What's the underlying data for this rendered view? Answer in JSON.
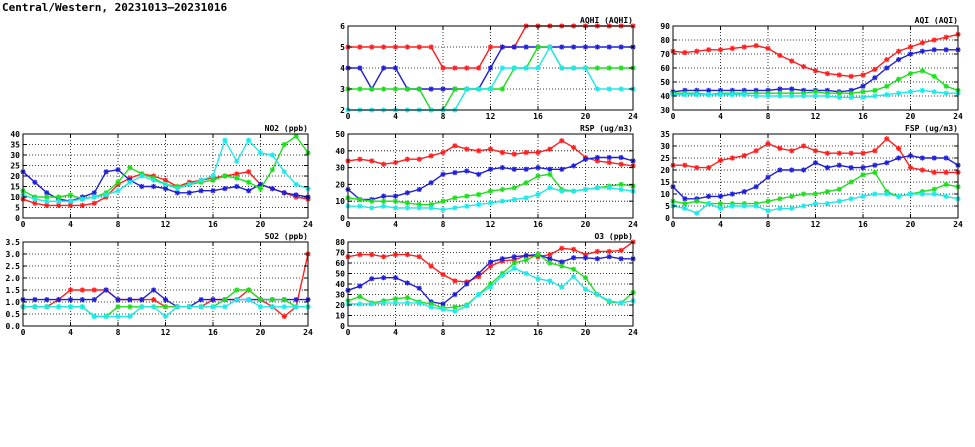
{
  "page_title": "Central/Western, 20231013–20231016",
  "series_colors": [
    "#ff1f1f",
    "#1f1fd9",
    "#1fdd1f",
    "#1fe8e8"
  ],
  "chart_data": [
    {
      "type": "line",
      "title": "AQHI (AQHI)",
      "x": [
        0,
        1,
        2,
        3,
        4,
        5,
        6,
        7,
        8,
        9,
        10,
        11,
        12,
        13,
        14,
        15,
        16,
        17,
        18,
        19,
        20,
        21,
        22,
        23,
        24
      ],
      "xlim": [
        0,
        24
      ],
      "ylim": [
        2,
        6
      ],
      "xticks": [
        0,
        4,
        8,
        12,
        16,
        20,
        24
      ],
      "yticks": [
        2,
        3,
        4,
        5,
        6
      ],
      "grid": true,
      "series": [
        {
          "color": "#ff1f1f",
          "values": [
            5,
            5,
            5,
            5,
            5,
            5,
            5,
            5,
            4,
            4,
            4,
            4,
            5,
            5,
            5,
            6,
            6,
            6,
            6,
            6,
            6,
            6,
            6,
            6,
            6
          ]
        },
        {
          "color": "#1f1fd9",
          "values": [
            4,
            4,
            3,
            4,
            4,
            3,
            3,
            3,
            3,
            3,
            3,
            3,
            4,
            5,
            5,
            5,
            5,
            5,
            5,
            5,
            5,
            5,
            5,
            5,
            5
          ]
        },
        {
          "color": "#1fdd1f",
          "values": [
            3,
            3,
            3,
            3,
            3,
            3,
            3,
            2,
            2,
            3,
            3,
            3,
            3,
            3,
            4,
            4,
            5,
            5,
            4,
            4,
            4,
            4,
            4,
            4,
            4
          ]
        },
        {
          "color": "#1fe8e8",
          "values": [
            2,
            2,
            2,
            2,
            2,
            2,
            2,
            2,
            2,
            2,
            3,
            3,
            3,
            4,
            4,
            4,
            4,
            5,
            4,
            4,
            4,
            3,
            3,
            3,
            3
          ]
        }
      ]
    },
    {
      "type": "line",
      "title": "AQI (AQI)",
      "x": [
        0,
        1,
        2,
        3,
        4,
        5,
        6,
        7,
        8,
        9,
        10,
        11,
        12,
        13,
        14,
        15,
        16,
        17,
        18,
        19,
        20,
        21,
        22,
        23,
        24
      ],
      "xlim": [
        0,
        24
      ],
      "ylim": [
        30,
        90
      ],
      "xticks": [
        0,
        4,
        8,
        12,
        16,
        20,
        24
      ],
      "yticks": [
        30,
        40,
        50,
        60,
        70,
        80,
        90
      ],
      "grid": true,
      "series": [
        {
          "color": "#ff1f1f",
          "values": [
            72,
            71,
            72,
            73,
            73,
            74,
            75,
            76,
            74,
            69,
            65,
            61,
            58,
            56,
            55,
            54,
            55,
            59,
            66,
            72,
            75,
            78,
            80,
            82,
            84
          ]
        },
        {
          "color": "#1f1fd9",
          "values": [
            43,
            44,
            44,
            44,
            44,
            44,
            44,
            44,
            44,
            45,
            45,
            44,
            44,
            44,
            43,
            44,
            47,
            53,
            60,
            66,
            70,
            72,
            73,
            73,
            73
          ]
        },
        {
          "color": "#1fdd1f",
          "values": [
            42,
            42,
            42,
            41,
            42,
            42,
            42,
            42,
            42,
            42,
            42,
            42,
            43,
            42,
            42,
            42,
            43,
            44,
            47,
            52,
            56,
            58,
            54,
            47,
            44
          ]
        },
        {
          "color": "#1fe8e8",
          "values": [
            41,
            41,
            41,
            41,
            41,
            41,
            41,
            40,
            40,
            40,
            40,
            40,
            40,
            40,
            39,
            39,
            39,
            40,
            41,
            42,
            43,
            44,
            43,
            42,
            42
          ]
        }
      ]
    },
    {
      "type": "line",
      "title": "NO2 (ppb)",
      "x": [
        0,
        1,
        2,
        3,
        4,
        5,
        6,
        7,
        8,
        9,
        10,
        11,
        12,
        13,
        14,
        15,
        16,
        17,
        18,
        19,
        20,
        21,
        22,
        23,
        24
      ],
      "xlim": [
        0,
        24
      ],
      "ylim": [
        0,
        40
      ],
      "xticks": [
        0,
        4,
        8,
        12,
        16,
        20,
        24
      ],
      "yticks": [
        0,
        5,
        10,
        15,
        20,
        25,
        30,
        35,
        40
      ],
      "grid": true,
      "series": [
        {
          "color": "#ff1f1f",
          "values": [
            9,
            7,
            6,
            6,
            6,
            6,
            7,
            10,
            16,
            19,
            21,
            20,
            18,
            15,
            17,
            18,
            19,
            20,
            21,
            22,
            16,
            14,
            12,
            10,
            9
          ]
        },
        {
          "color": "#1f1fd9",
          "values": [
            22,
            17,
            12,
            9,
            8,
            10,
            12,
            22,
            23,
            18,
            15,
            15,
            14,
            12,
            12,
            13,
            13,
            14,
            15,
            13,
            16,
            14,
            12,
            11,
            10
          ]
        },
        {
          "color": "#1fdd1f",
          "values": [
            13,
            10,
            10,
            10,
            11,
            9,
            10,
            12,
            17,
            24,
            21,
            19,
            16,
            15,
            16,
            17,
            18,
            20,
            19,
            17,
            14,
            23,
            35,
            39,
            31
          ]
        },
        {
          "color": "#1fe8e8",
          "values": [
            11,
            9,
            8,
            8,
            8,
            9,
            10,
            11,
            13,
            17,
            20,
            18,
            16,
            14,
            16,
            18,
            20,
            37,
            27,
            37,
            31,
            30,
            22,
            16,
            14
          ]
        }
      ]
    },
    {
      "type": "line",
      "title": "RSP (ug/m3)",
      "x": [
        0,
        1,
        2,
        3,
        4,
        5,
        6,
        7,
        8,
        9,
        10,
        11,
        12,
        13,
        14,
        15,
        16,
        17,
        18,
        19,
        20,
        21,
        22,
        23,
        24
      ],
      "xlim": [
        0,
        24
      ],
      "ylim": [
        0,
        50
      ],
      "xticks": [
        0,
        4,
        8,
        12,
        16,
        20,
        24
      ],
      "yticks": [
        0,
        10,
        20,
        30,
        40,
        50
      ],
      "grid": true,
      "series": [
        {
          "color": "#ff1f1f",
          "values": [
            34,
            35,
            34,
            32,
            33,
            35,
            35,
            37,
            39,
            43,
            41,
            40,
            41,
            39,
            38,
            39,
            39,
            41,
            46,
            42,
            36,
            34,
            33,
            32,
            31
          ]
        },
        {
          "color": "#1f1fd9",
          "values": [
            17,
            11,
            11,
            13,
            13,
            15,
            17,
            21,
            26,
            27,
            28,
            26,
            29,
            30,
            29,
            29,
            30,
            29,
            29,
            31,
            35,
            36,
            36,
            36,
            34
          ]
        },
        {
          "color": "#1fdd1f",
          "values": [
            12,
            11,
            10,
            10,
            10,
            9,
            8,
            8,
            10,
            12,
            13,
            14,
            16,
            17,
            18,
            21,
            25,
            26,
            17,
            16,
            17,
            18,
            19,
            20,
            19
          ]
        },
        {
          "color": "#1fe8e8",
          "values": [
            7,
            7,
            6,
            7,
            6,
            6,
            6,
            6,
            5,
            6,
            7,
            8,
            9,
            10,
            11,
            12,
            14,
            18,
            16,
            16,
            17,
            18,
            18,
            17,
            16
          ]
        }
      ]
    },
    {
      "type": "line",
      "title": "FSP (ug/m3)",
      "x": [
        0,
        1,
        2,
        3,
        4,
        5,
        6,
        7,
        8,
        9,
        10,
        11,
        12,
        13,
        14,
        15,
        16,
        17,
        18,
        19,
        20,
        21,
        22,
        23,
        24
      ],
      "xlim": [
        0,
        24
      ],
      "ylim": [
        0,
        35
      ],
      "xticks": [
        0,
        4,
        8,
        12,
        16,
        20,
        24
      ],
      "yticks": [
        0,
        5,
        10,
        15,
        20,
        25,
        30,
        35
      ],
      "grid": true,
      "series": [
        {
          "color": "#ff1f1f",
          "values": [
            22,
            22,
            21,
            21,
            24,
            25,
            26,
            28,
            31,
            29,
            28,
            30,
            28,
            27,
            27,
            27,
            27,
            28,
            33,
            29,
            21,
            20,
            19,
            19,
            19
          ]
        },
        {
          "color": "#1f1fd9",
          "values": [
            13,
            8,
            8,
            9,
            9,
            10,
            11,
            13,
            17,
            20,
            20,
            20,
            23,
            21,
            22,
            21,
            21,
            22,
            23,
            25,
            26,
            25,
            25,
            25,
            22
          ]
        },
        {
          "color": "#1fdd1f",
          "values": [
            7,
            6,
            7,
            6,
            6,
            6,
            6,
            6,
            7,
            8,
            9,
            10,
            10,
            11,
            12,
            15,
            18,
            19,
            11,
            9,
            10,
            11,
            12,
            14,
            13
          ]
        },
        {
          "color": "#1fe8e8",
          "values": [
            5,
            4,
            2,
            6,
            4,
            5,
            5,
            5,
            3,
            4,
            4,
            5,
            6,
            6,
            7,
            8,
            9,
            10,
            10,
            9,
            10,
            10,
            10,
            9,
            8
          ]
        }
      ]
    },
    {
      "type": "line",
      "title": "SO2 (ppb)",
      "x": [
        0,
        1,
        2,
        3,
        4,
        5,
        6,
        7,
        8,
        9,
        10,
        11,
        12,
        13,
        14,
        15,
        16,
        17,
        18,
        19,
        20,
        21,
        22,
        23,
        24
      ],
      "xlim": [
        0,
        24
      ],
      "ylim": [
        0,
        3.5
      ],
      "xticks": [
        0,
        4,
        8,
        12,
        16,
        20,
        24
      ],
      "yticks": [
        0,
        0.5,
        1.0,
        1.5,
        2.0,
        2.5,
        3.0,
        3.5
      ],
      "grid": true,
      "series": [
        {
          "color": "#ff1f1f",
          "values": [
            0.8,
            0.8,
            0.8,
            1.1,
            1.5,
            1.5,
            1.5,
            1.5,
            1.1,
            1.1,
            1.1,
            1.1,
            0.8,
            0.8,
            0.8,
            0.8,
            1.1,
            1.1,
            1.1,
            1.5,
            1.1,
            0.8,
            0.4,
            0.8,
            3.0
          ]
        },
        {
          "color": "#1f1fd9",
          "values": [
            1.1,
            1.1,
            1.1,
            1.1,
            1.1,
            1.1,
            1.1,
            1.5,
            1.1,
            1.1,
            1.1,
            1.5,
            1.1,
            0.8,
            0.8,
            1.1,
            1.1,
            1.1,
            1.1,
            1.1,
            1.1,
            1.1,
            1.1,
            1.1,
            1.1
          ]
        },
        {
          "color": "#1fdd1f",
          "values": [
            0.8,
            0.8,
            0.8,
            0.8,
            0.8,
            0.8,
            0.4,
            0.4,
            0.8,
            0.8,
            0.8,
            0.8,
            0.8,
            0.8,
            0.8,
            0.8,
            0.8,
            1.1,
            1.5,
            1.5,
            1.1,
            1.1,
            1.1,
            0.8,
            0.8
          ]
        },
        {
          "color": "#1fe8e8",
          "values": [
            0.8,
            0.8,
            0.8,
            0.8,
            0.8,
            0.8,
            0.4,
            0.4,
            0.4,
            0.4,
            0.8,
            0.8,
            0.4,
            0.8,
            0.8,
            0.8,
            0.8,
            0.8,
            1.1,
            1.1,
            0.8,
            0.8,
            0.8,
            0.8,
            0.8
          ]
        }
      ]
    },
    {
      "type": "line",
      "title": "O3 (ppb)",
      "x": [
        0,
        1,
        2,
        3,
        4,
        5,
        6,
        7,
        8,
        9,
        10,
        11,
        12,
        13,
        14,
        15,
        16,
        17,
        18,
        19,
        20,
        21,
        22,
        23,
        24
      ],
      "xlim": [
        0,
        24
      ],
      "ylim": [
        0,
        80
      ],
      "xticks": [
        0,
        4,
        8,
        12,
        16,
        20,
        24
      ],
      "yticks": [
        0,
        10,
        20,
        30,
        40,
        50,
        60,
        70,
        80
      ],
      "grid": true,
      "series": [
        {
          "color": "#ff1f1f",
          "values": [
            66,
            68,
            68,
            66,
            68,
            68,
            66,
            57,
            49,
            43,
            42,
            47,
            57,
            62,
            63,
            67,
            66,
            68,
            74,
            73,
            68,
            71,
            71,
            72,
            80
          ]
        },
        {
          "color": "#1f1fd9",
          "values": [
            34,
            38,
            45,
            46,
            46,
            41,
            36,
            23,
            21,
            30,
            40,
            50,
            61,
            64,
            66,
            67,
            68,
            64,
            61,
            65,
            65,
            64,
            66,
            64,
            64
          ]
        },
        {
          "color": "#1fdd1f",
          "values": [
            24,
            28,
            22,
            24,
            26,
            27,
            23,
            21,
            17,
            18,
            20,
            30,
            40,
            50,
            60,
            63,
            68,
            60,
            57,
            54,
            46,
            30,
            23,
            22,
            32
          ]
        },
        {
          "color": "#1fe8e8",
          "values": [
            21,
            21,
            21,
            22,
            22,
            22,
            22,
            18,
            16,
            14,
            19,
            30,
            37,
            48,
            55,
            50,
            45,
            43,
            37,
            47,
            35,
            30,
            24,
            22,
            24
          ]
        }
      ]
    }
  ]
}
